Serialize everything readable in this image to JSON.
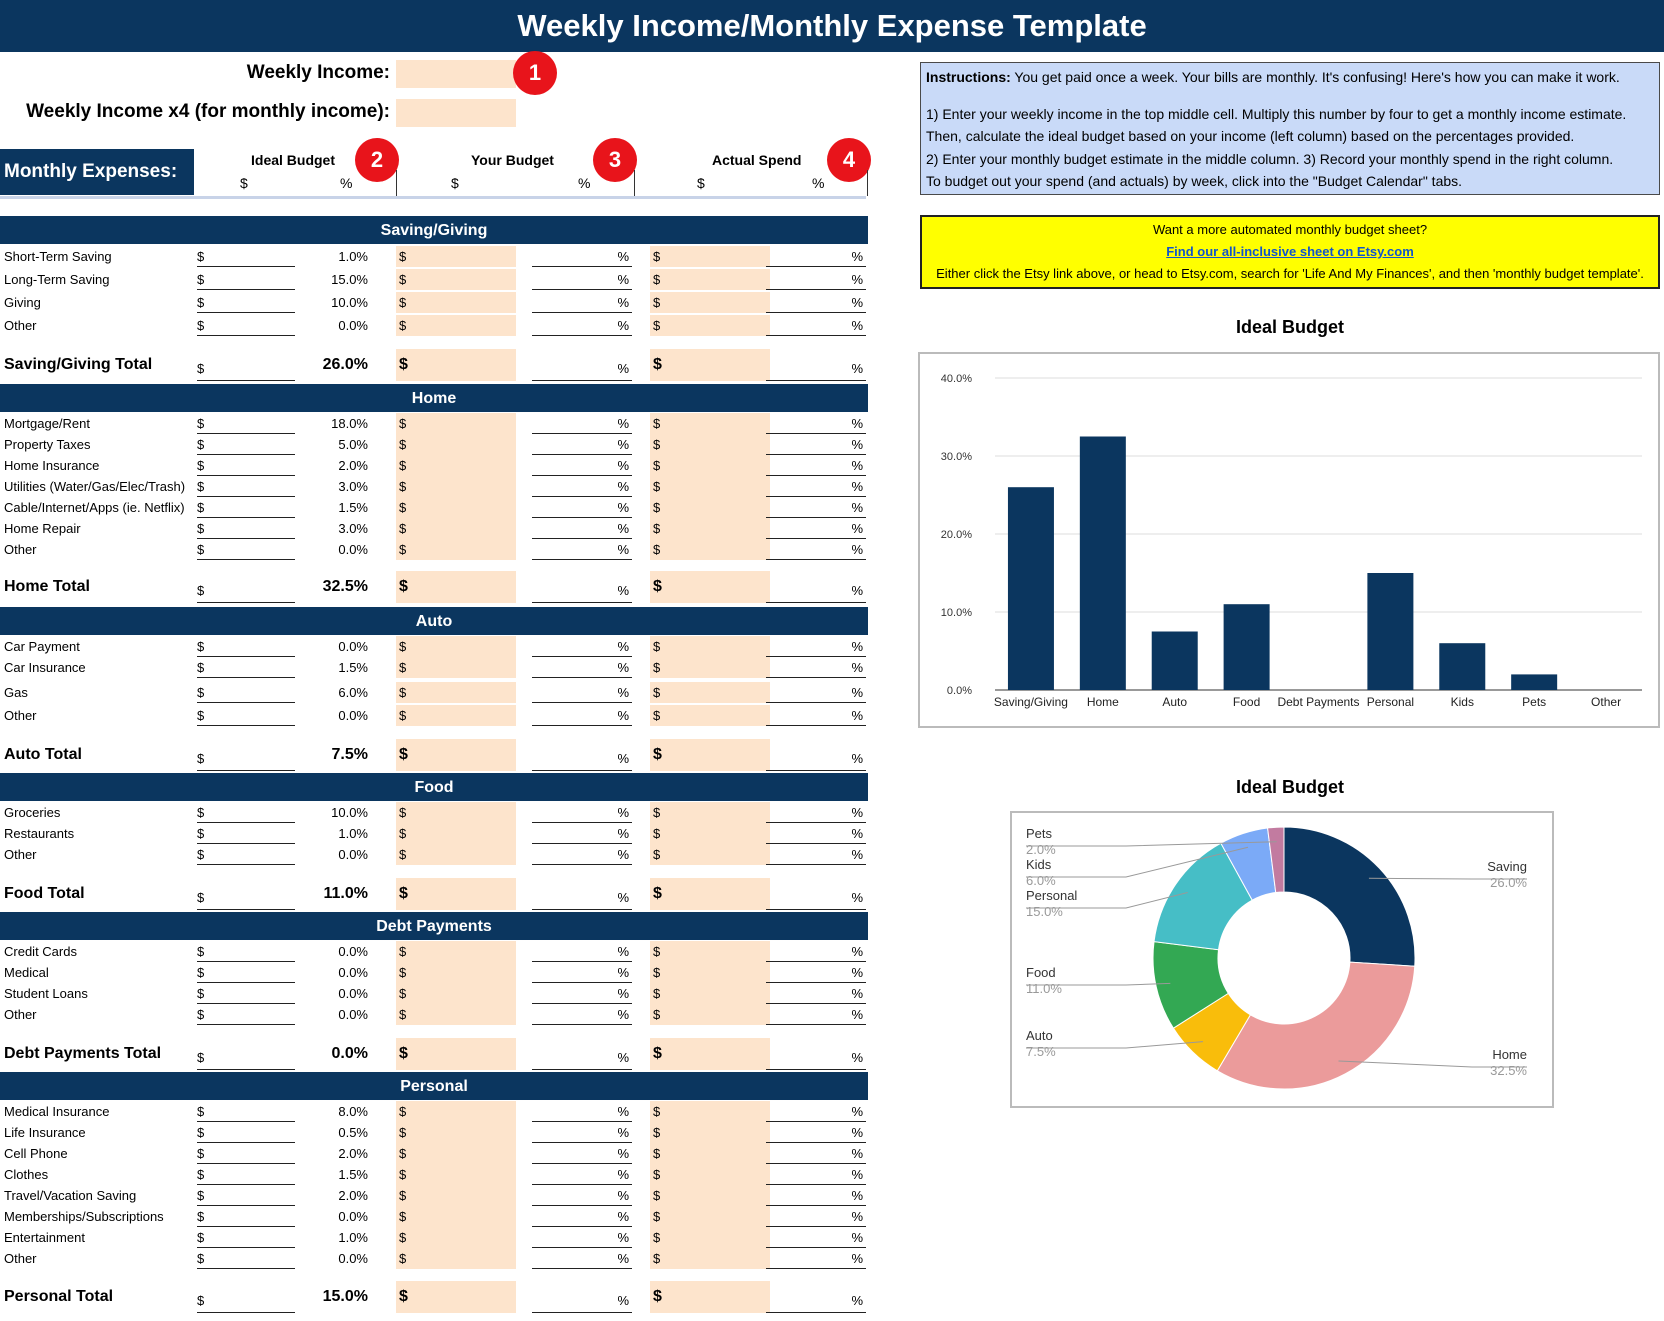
{
  "title": "Weekly Income/Monthly Expense Template",
  "income": {
    "weekly_label": "Weekly Income:",
    "monthly_label": "Weekly Income x4 (for monthly income):"
  },
  "badges": [
    "1",
    "2",
    "3",
    "4"
  ],
  "monthly_expenses_label": "Monthly Expenses:",
  "columns": {
    "ideal": "Ideal Budget",
    "yours": "Your Budget",
    "actual": "Actual Spend",
    "dollar": "$",
    "percent": "%"
  },
  "instructions": {
    "bold": "Instructions:",
    "line1": " You get paid once a week. Your bills are monthly. It's confusing! Here's how you can make it work.",
    "line2": "1) Enter your weekly income in the top middle cell. Multiply this number by four to get a monthly income estimate.",
    "line3": "Then, calculate the ideal budget based on your income (left column) based on the percentages provided.",
    "line4": "2) Enter your monthly budget estimate in the middle column. 3) Record your monthly spend in the right column.",
    "line5": "To budget out your spend (and actuals) by week, click into the \"Budget Calendar\" tabs."
  },
  "promo": {
    "line1": "Want a more automated monthly budget sheet?",
    "link": "Find our all-inclusive sheet on Etsy.com",
    "line3": "Either click the Etsy link above, or head to Etsy.com, search for 'Life And My Finances', and then 'monthly budget template'."
  },
  "sections": [
    {
      "name": "Saving/Giving",
      "items": [
        {
          "label": "Short-Term Saving",
          "pct": "1.0%"
        },
        {
          "label": "Long-Term Saving",
          "pct": "15.0%"
        },
        {
          "label": "Giving",
          "pct": "10.0%"
        },
        {
          "label": "Other",
          "pct": "0.0%"
        }
      ],
      "total_label": "Saving/Giving Total",
      "total_pct": "26.0%"
    },
    {
      "name": "Home",
      "items": [
        {
          "label": "Mortgage/Rent",
          "pct": "18.0%"
        },
        {
          "label": "Property Taxes",
          "pct": "5.0%"
        },
        {
          "label": "Home Insurance",
          "pct": "2.0%"
        },
        {
          "label": "Utilities (Water/Gas/Elec/Trash)",
          "pct": "3.0%"
        },
        {
          "label": "Cable/Internet/Apps (ie. Netflix)",
          "pct": "1.5%"
        },
        {
          "label": "Home Repair",
          "pct": "3.0%"
        },
        {
          "label": "Other",
          "pct": "0.0%"
        }
      ],
      "total_label": "Home Total",
      "total_pct": "32.5%"
    },
    {
      "name": "Auto",
      "items": [
        {
          "label": "Car Payment",
          "pct": "0.0%"
        },
        {
          "label": "Car Insurance",
          "pct": "1.5%"
        },
        {
          "label": "Gas",
          "pct": "6.0%"
        },
        {
          "label": "Other",
          "pct": "0.0%"
        }
      ],
      "total_label": "Auto Total",
      "total_pct": "7.5%"
    },
    {
      "name": "Food",
      "items": [
        {
          "label": "Groceries",
          "pct": "10.0%"
        },
        {
          "label": "Restaurants",
          "pct": "1.0%"
        },
        {
          "label": "Other",
          "pct": "0.0%"
        }
      ],
      "total_label": "Food Total",
      "total_pct": "11.0%"
    },
    {
      "name": "Debt Payments",
      "items": [
        {
          "label": "Credit Cards",
          "pct": "0.0%"
        },
        {
          "label": "Medical",
          "pct": "0.0%"
        },
        {
          "label": "Student Loans",
          "pct": "0.0%"
        },
        {
          "label": "Other",
          "pct": "0.0%"
        }
      ],
      "total_label": "Debt Payments Total",
      "total_pct": "0.0%"
    },
    {
      "name": "Personal",
      "items": [
        {
          "label": "Medical Insurance",
          "pct": "8.0%"
        },
        {
          "label": "Life Insurance",
          "pct": "0.5%"
        },
        {
          "label": "Cell Phone",
          "pct": "2.0%"
        },
        {
          "label": "Clothes",
          "pct": "1.5%"
        },
        {
          "label": "Travel/Vacation Saving",
          "pct": "2.0%"
        },
        {
          "label": "Memberships/Subscriptions",
          "pct": "0.0%"
        },
        {
          "label": "Entertainment",
          "pct": "1.0%"
        },
        {
          "label": "Other",
          "pct": "0.0%"
        }
      ],
      "total_label": "Personal Total",
      "total_pct": "15.0%"
    }
  ],
  "colors": {
    "navy": "#0b365f",
    "peach": "#fde4cc",
    "badge": "#e8141b",
    "instructions_bg": "#c9daf8",
    "promo_bg": "#ffff00"
  },
  "chart_data": [
    {
      "type": "bar",
      "title": "Ideal Budget",
      "categories": [
        "Saving/Giving",
        "Home",
        "Auto",
        "Food",
        "Debt Payments",
        "Personal",
        "Kids",
        "Pets",
        "Other"
      ],
      "values": [
        26.0,
        32.5,
        7.5,
        11.0,
        0.0,
        15.0,
        6.0,
        2.0,
        0.0
      ],
      "y_ticks": [
        "0.0%",
        "10.0%",
        "20.0%",
        "30.0%",
        "40.0%"
      ],
      "ylim": [
        0,
        40
      ],
      "grid": true,
      "bar_color": "#0b365f"
    },
    {
      "type": "pie",
      "donut": true,
      "title": "Ideal Budget",
      "slices": [
        {
          "label": "Saving",
          "value": 26.0,
          "text": "26.0%",
          "color": "#0b365f"
        },
        {
          "label": "Home",
          "value": 32.5,
          "text": "32.5%",
          "color": "#eb9b9b"
        },
        {
          "label": "Auto",
          "value": 7.5,
          "text": "7.5%",
          "color": "#f9bd0b"
        },
        {
          "label": "Food",
          "value": 11.0,
          "text": "11.0%",
          "color": "#33a853"
        },
        {
          "label": "Personal",
          "value": 15.0,
          "text": "15.0%",
          "color": "#46bec6"
        },
        {
          "label": "Kids",
          "value": 6.0,
          "text": "6.0%",
          "color": "#7baaf7"
        },
        {
          "label": "Pets",
          "value": 2.0,
          "text": "2.0%",
          "color": "#c27ba0"
        }
      ]
    }
  ]
}
